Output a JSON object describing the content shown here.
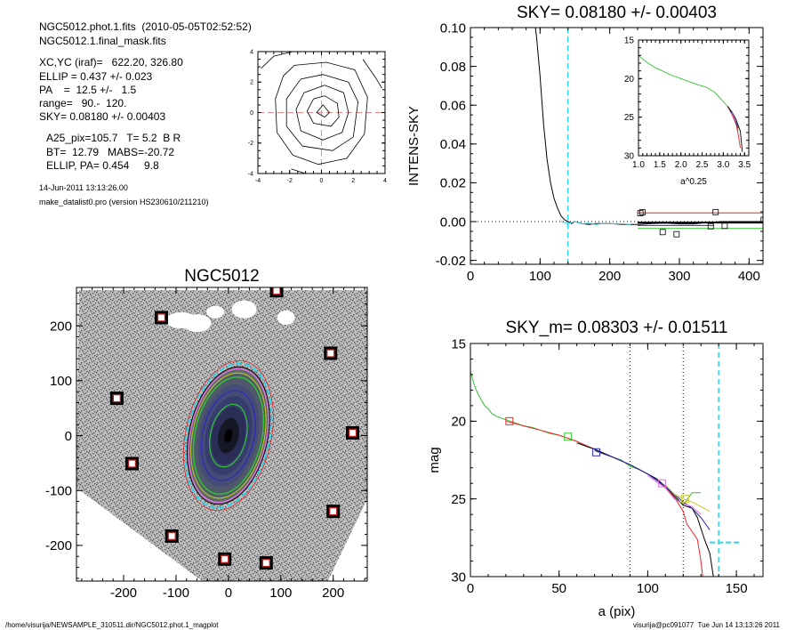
{
  "header": {
    "lines1": [
      "NGC5012.phot.1.fits  (2010-05-05T02:52:52)",
      "NGC5012.1.final_mask.fits"
    ],
    "lines2": [
      "XC,YC (iraf)=   622.20, 326.80",
      "ELLIP = 0.437 +/- 0.023",
      "PA    =  12.5 +/-   1.5",
      "range=   90.-  120.",
      "SKY= 0.08180 +/- 0.00403"
    ],
    "lines3": [
      "A25_pix=105.7   T= 5.2  B R",
      "BT=  12.79   MABS=-20.72",
      "ELLIP, PA= 0.454     9.8"
    ],
    "date": "14-Jun-2011 13:13:26.00",
    "program": "make_datalist0.pro (version HS230610/211210)"
  },
  "footer": {
    "left": "/home/visurija/NEWSAMPLE_310511.dir/NGC5012.phot.1_magplot",
    "right": "visurija@pc091077  Tue Jun 14 13:13:26 2011"
  },
  "colors": {
    "red": "#e8262b",
    "green": "#31c331",
    "cyan": "#27d5ee",
    "blue": "#2b2bb8",
    "magenta": "#e270e6",
    "yellow": "#c9c82a",
    "black": "#000000",
    "grid": "#ef8a8a"
  },
  "chart_data": [
    {
      "id": "contour",
      "type": "contour",
      "title": "",
      "xlim": [
        -4,
        4
      ],
      "ylim": [
        -4,
        4
      ],
      "xticks": [
        "-4",
        "-2",
        "0",
        "2",
        "4"
      ],
      "yticks": [
        "-4",
        "-2",
        "0",
        "2",
        "4"
      ],
      "levels": [
        [
          [
            0.1,
            0.5
          ],
          [
            0.5,
            0.0
          ],
          [
            0.2,
            -0.3
          ],
          [
            -0.3,
            0.0
          ],
          [
            0.1,
            0.5
          ]
        ],
        [
          [
            0.2,
            1.1
          ],
          [
            1.0,
            0.6
          ],
          [
            1.1,
            -0.3
          ],
          [
            0.6,
            -0.9
          ],
          [
            -0.5,
            -0.7
          ],
          [
            -0.9,
            0.1
          ],
          [
            -0.5,
            0.9
          ],
          [
            0.2,
            1.1
          ]
        ],
        [
          [
            0.2,
            1.8
          ],
          [
            1.4,
            1.3
          ],
          [
            1.7,
            0.0
          ],
          [
            1.3,
            -1.3
          ],
          [
            0.1,
            -1.8
          ],
          [
            -1.3,
            -1.2
          ],
          [
            -1.6,
            0.2
          ],
          [
            -1.1,
            1.3
          ],
          [
            0.2,
            1.8
          ]
        ],
        [
          [
            0.1,
            2.5
          ],
          [
            1.7,
            2.0
          ],
          [
            2.3,
            0.7
          ],
          [
            2.0,
            -1.6
          ],
          [
            0.7,
            -2.5
          ],
          [
            -1.2,
            -2.2
          ],
          [
            -2.2,
            -0.9
          ],
          [
            -2.2,
            0.9
          ],
          [
            -1.3,
            2.2
          ],
          [
            0.1,
            2.5
          ]
        ],
        [
          [
            -1.7,
            3.1
          ],
          [
            0.3,
            3.3
          ],
          [
            2.1,
            2.8
          ],
          [
            2.9,
            1.0
          ],
          [
            2.7,
            -1.4
          ],
          [
            1.6,
            -3.0
          ],
          [
            -0.2,
            -3.4
          ],
          [
            -1.8,
            -2.8
          ],
          [
            -2.8,
            -1.3
          ],
          [
            -2.9,
            0.9
          ],
          [
            -2.4,
            2.4
          ],
          [
            -1.7,
            3.1
          ]
        ],
        [
          [
            -3.8,
            2.9
          ],
          [
            -3.0,
            3.7
          ],
          [
            -1.8,
            4.0
          ]
        ],
        [
          [
            2.6,
            3.5
          ],
          [
            3.4,
            2.3
          ],
          [
            3.8,
            1.6
          ]
        ],
        [
          [
            -1.9,
            -3.7
          ],
          [
            -1.0,
            -4.0
          ]
        ]
      ]
    },
    {
      "id": "sky",
      "type": "line",
      "title": "SKY= 0.08180 +/- 0.00403",
      "xlabel": "",
      "ylabel": "INTENS-SKY",
      "xlim": [
        0,
        420
      ],
      "ylim": [
        -0.022,
        0.1
      ],
      "xticks": [
        "0",
        "100",
        "200",
        "300",
        "400"
      ],
      "yticks": [
        "-0.02",
        "0.00",
        "0.02",
        "0.04",
        "0.06",
        "0.08",
        "0.10"
      ],
      "vline": 140,
      "series": [
        {
          "color": "black",
          "x": [
            90,
            95,
            100,
            105,
            110,
            115,
            120,
            125,
            130,
            135,
            140,
            145,
            150,
            160,
            170,
            180,
            200,
            220,
            240,
            260,
            280,
            300,
            320,
            340,
            360,
            380,
            400,
            420
          ],
          "y": [
            0.11,
            0.095,
            0.075,
            0.05,
            0.032,
            0.02,
            0.012,
            0.007,
            0.003,
            0.001,
            0.0,
            -0.001,
            0.0,
            -0.001,
            -0.0015,
            -0.001,
            -0.001,
            -0.0015,
            -0.0015,
            -0.001,
            -0.0008,
            -0.0012,
            -0.0012,
            -0.0005,
            0.0,
            0.0,
            0.0,
            0.0
          ]
        },
        {
          "color": "cyan",
          "x": [
            130,
            140,
            150,
            160,
            170,
            180,
            190,
            200,
            210,
            220,
            230
          ],
          "y": [
            0.0,
            -0.001,
            0.0,
            -0.0012,
            -0.0008,
            -0.0015,
            -0.001,
            -0.0012,
            -0.001,
            -0.0012,
            -0.0015
          ]
        },
        {
          "color": "red",
          "x": [
            240,
            420
          ],
          "y": [
            0.0045,
            0.0045
          ]
        },
        {
          "color": "green",
          "x": [
            240,
            420
          ],
          "y": [
            -0.0035,
            -0.0035
          ]
        },
        {
          "color": "blue",
          "x": [
            240,
            350
          ],
          "y": [
            -0.002,
            -0.002
          ]
        },
        {
          "color": "black",
          "x": [
            240,
            420
          ],
          "y": [
            -0.0005,
            -0.0005
          ]
        }
      ],
      "markers": [
        [
          244,
          0.0043
        ],
        [
          247,
          0.0048
        ],
        [
          276,
          -0.0054
        ],
        [
          296,
          -0.0065
        ],
        [
          345,
          -0.0024
        ],
        [
          352,
          0.0049
        ],
        [
          365,
          -0.0022
        ],
        [
          421,
          0.0009
        ]
      ],
      "inset": {
        "xlabel": "a^0.25",
        "xlim": [
          1.0,
          3.6
        ],
        "ylim": [
          30,
          15
        ],
        "xticks": [
          "1.0",
          "1.5",
          "2.0",
          "2.5",
          "3.0",
          "3.5"
        ],
        "yticks": [
          "15",
          "20",
          "25",
          "30"
        ],
        "series": [
          {
            "color": "green",
            "x": [
              1.0,
              1.2,
              1.4,
              1.6,
              1.8,
              2.0,
              2.2,
              2.4,
              2.6,
              2.8,
              2.9,
              3.0,
              3.1,
              3.2,
              3.3,
              3.35
            ],
            "y": [
              17.0,
              17.9,
              18.6,
              19.1,
              19.6,
              20.0,
              20.4,
              20.8,
              21.1,
              21.8,
              22.4,
              23.0,
              23.6,
              24.4,
              25.6,
              26.8
            ]
          },
          {
            "color": "red",
            "x": [
              3.1,
              3.2,
              3.3,
              3.35,
              3.4
            ],
            "y": [
              23.6,
              24.6,
              25.9,
              27.2,
              29.0
            ]
          },
          {
            "color": "black",
            "x": [
              3.1,
              3.2,
              3.3,
              3.4,
              3.45
            ],
            "y": [
              23.6,
              24.3,
              25.3,
              26.8,
              29.5
            ]
          },
          {
            "color": "blue",
            "x": [
              3.15,
              3.25,
              3.35
            ],
            "y": [
              24.0,
              25.0,
              26.4
            ]
          },
          {
            "color": "magenta",
            "x": [
              3.2,
              3.3
            ],
            "y": [
              24.4,
              25.6
            ]
          }
        ]
      }
    },
    {
      "id": "image",
      "type": "image",
      "title": "NGC5012",
      "xlim": [
        -290,
        265
      ],
      "ylim": [
        -265,
        270
      ],
      "xticks": [
        "-200",
        "-100",
        "0",
        "100",
        "200"
      ],
      "yticks": [
        "-200",
        "-100",
        "0",
        "100",
        "200"
      ],
      "ellipse": {
        "a": 132,
        "ellip": 0.437,
        "pa": 12.5
      },
      "stars": [
        [
          -128,
          215
        ],
        [
          92,
          264
        ],
        [
          195,
          150
        ],
        [
          -213,
          68
        ],
        [
          237,
          5
        ],
        [
          -184,
          -51
        ],
        [
          200,
          -138
        ],
        [
          -108,
          -183
        ],
        [
          -7,
          -225
        ],
        [
          72,
          -232
        ]
      ]
    },
    {
      "id": "mag",
      "type": "line",
      "title": "SKY_m=  0.08303 +/- 0.01511",
      "xlabel": "a (pix)",
      "ylabel": "mag",
      "xlim": [
        0,
        165
      ],
      "ylim": [
        30,
        15
      ],
      "xticks": [
        "0",
        "50",
        "100",
        "150"
      ],
      "yticks": [
        "15",
        "20",
        "25",
        "30"
      ],
      "vlines_dotted": [
        90,
        120
      ],
      "vline_dashed": 140,
      "hline_segment": {
        "x": [
          135,
          152
        ],
        "y": 27.8
      },
      "series": [
        {
          "color": "green",
          "x": [
            0,
            2,
            4,
            6,
            8,
            10,
            12,
            15,
            20,
            25,
            30,
            35,
            40,
            45,
            50,
            55,
            60,
            65,
            70,
            75,
            80,
            85,
            90,
            95,
            100,
            105,
            110,
            115,
            120,
            125,
            130
          ],
          "y": [
            16.8,
            17.6,
            18.2,
            18.6,
            19.0,
            19.2,
            19.5,
            19.7,
            19.9,
            20.1,
            20.3,
            20.4,
            20.6,
            20.8,
            20.9,
            21.1,
            21.3,
            21.6,
            21.8,
            22.1,
            22.3,
            22.5,
            22.9,
            23.1,
            23.4,
            23.8,
            24.3,
            24.9,
            25.4,
            24.6,
            24.6
          ]
        },
        {
          "color": "red",
          "x": [
            20,
            30,
            40,
            50,
            60,
            70,
            80,
            90,
            100,
            105,
            110,
            115,
            120,
            122,
            125,
            128,
            130,
            131
          ],
          "y": [
            20.0,
            20.3,
            20.6,
            20.9,
            21.3,
            21.8,
            22.3,
            22.8,
            23.4,
            23.8,
            24.3,
            24.9,
            25.8,
            26.6,
            27.1,
            27.6,
            29.0,
            30.0
          ]
        },
        {
          "color": "black",
          "x": [
            60,
            70,
            80,
            90,
            100,
            105,
            110,
            115,
            120,
            125,
            128,
            132,
            135,
            137
          ],
          "y": [
            21.4,
            21.8,
            22.3,
            22.8,
            23.4,
            23.7,
            24.2,
            24.8,
            25.4,
            25.6,
            26.2,
            27.6,
            28.5,
            30.0
          ]
        },
        {
          "color": "blue",
          "x": [
            70,
            80,
            90,
            100,
            110,
            120,
            125,
            130,
            135
          ],
          "y": [
            21.9,
            22.3,
            22.8,
            23.4,
            24.2,
            25.2,
            25.6,
            26.2,
            27.0
          ]
        },
        {
          "color": "magenta",
          "x": [
            100,
            105,
            110,
            115,
            120,
            125,
            130
          ],
          "y": [
            23.5,
            23.9,
            24.3,
            25.0,
            25.3,
            25.5,
            26.0
          ]
        },
        {
          "color": "yellow",
          "x": [
            110,
            115,
            120,
            125,
            130,
            135
          ],
          "y": [
            24.1,
            24.7,
            25.0,
            25.2,
            25.5,
            25.8
          ]
        }
      ],
      "markers": [
        {
          "color": "red",
          "x": 22,
          "y": 20.0
        },
        {
          "color": "green",
          "x": 55,
          "y": 21.0
        },
        {
          "color": "blue",
          "x": 71,
          "y": 22.0
        },
        {
          "color": "magenta",
          "x": 108,
          "y": 24.0
        },
        {
          "color": "yellow",
          "x": 121,
          "y": 25.0
        }
      ]
    }
  ]
}
